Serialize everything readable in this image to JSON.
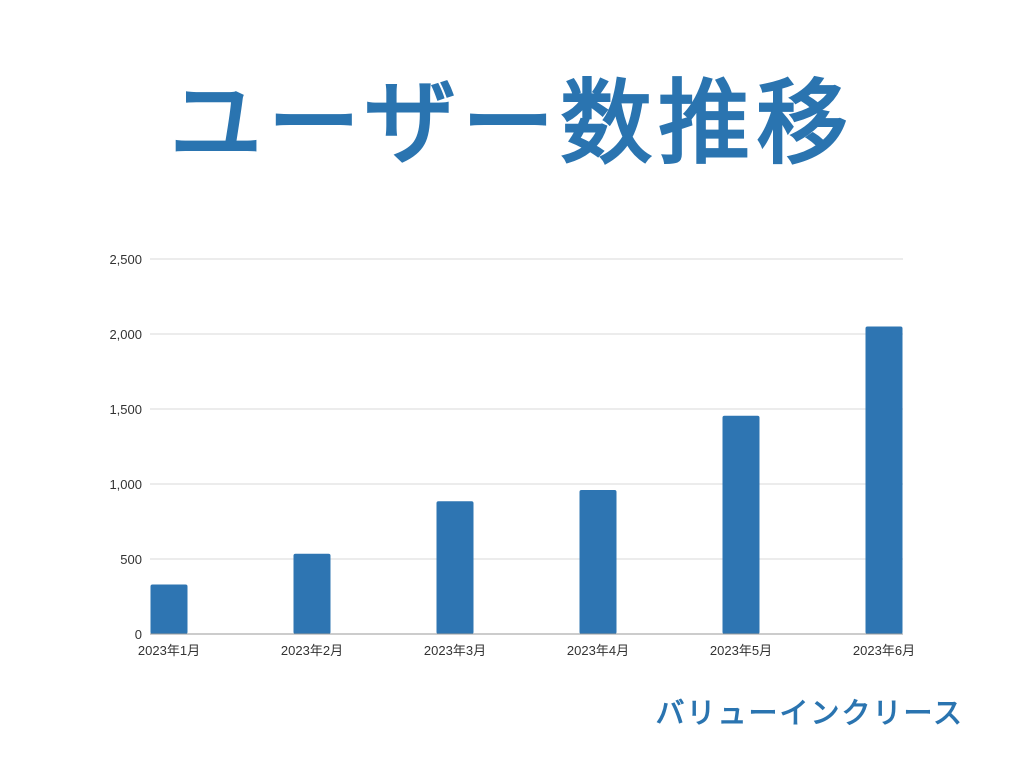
{
  "title": "ユーザー数推移",
  "brand": "バリューインクリース",
  "colors": {
    "accent": "#2a74b0",
    "bar": "#2e75b2",
    "grid": "#d9d9d9",
    "axis": "#9a9a9a",
    "text": "#333333"
  },
  "chart_data": {
    "type": "bar",
    "categories": [
      "2023年1月",
      "2023年2月",
      "2023年3月",
      "2023年4月",
      "2023年5月",
      "2023年6月"
    ],
    "values": [
      330,
      535,
      885,
      960,
      1455,
      2050
    ],
    "ylim": [
      0,
      2500
    ],
    "yticks": [
      0,
      500,
      1000,
      1500,
      2000,
      2500
    ],
    "ytick_labels": [
      "0",
      "500",
      "1,000",
      "1,500",
      "2,000",
      "2,500"
    ],
    "grid": true,
    "legend": "none"
  }
}
